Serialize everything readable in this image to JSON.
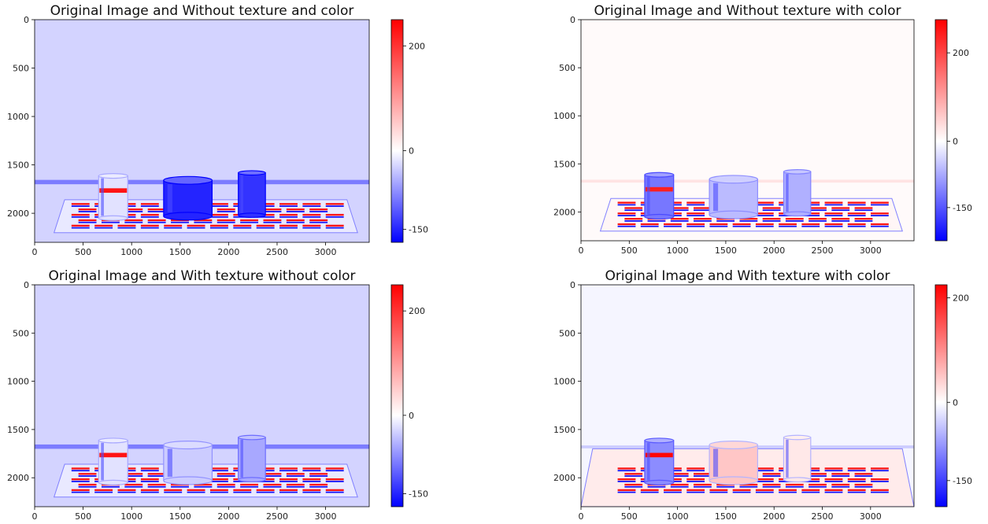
{
  "colors": {
    "cmap_low": "#0000ff",
    "cmap_mid": "#ffffff",
    "cmap_high": "#ff0000",
    "frame": "#000000"
  },
  "chart_data": [
    {
      "type": "heatmap",
      "title": "Original Image and Without texture and color",
      "xlim": [
        0,
        3450
      ],
      "ylim": [
        2300,
        0
      ],
      "xticks": [
        0,
        500,
        1000,
        1500,
        2000,
        2500,
        3000
      ],
      "yticks": [
        0,
        500,
        1000,
        1500,
        2000
      ],
      "colorbar": {
        "range": [
          -175,
          250
        ],
        "ticks": [
          200,
          0,
          -150
        ]
      },
      "background_value": -30,
      "scene": [
        {
          "kind": "horizon",
          "y": 1655,
          "h": 45,
          "value": -90
        },
        {
          "kind": "mat",
          "x0": 200,
          "x1": 3330,
          "y0": 1860,
          "y1": 2200,
          "value": -15
        },
        {
          "kind": "checker",
          "x0": 380,
          "x1": 3240,
          "y0": 1890,
          "y1": 2170,
          "cols": 12,
          "rows": 5
        },
        {
          "kind": "cylinder",
          "x0": 660,
          "x1": 960,
          "y0": 1590,
          "y1": 2050,
          "value": -20,
          "band": 230
        },
        {
          "kind": "cylinder",
          "x0": 1330,
          "x1": 1830,
          "y0": 1620,
          "y1": 2030,
          "value": -150
        },
        {
          "kind": "cylinder",
          "x0": 2100,
          "x1": 2380,
          "y0": 1560,
          "y1": 2020,
          "value": -140
        }
      ]
    },
    {
      "type": "heatmap",
      "title": "Original Image and Without texture with color",
      "xlim": [
        0,
        3450
      ],
      "ylim": [
        2300,
        0
      ],
      "xticks": [
        0,
        500,
        1000,
        1500,
        2000,
        2500,
        3000
      ],
      "yticks": [
        0,
        500,
        1000,
        1500,
        2000
      ],
      "colorbar": {
        "range": [
          -225,
          275
        ],
        "ticks": [
          200,
          0,
          -150
        ]
      },
      "background_value": 5,
      "scene": [
        {
          "kind": "horizon",
          "y": 1665,
          "h": 30,
          "value": 30
        },
        {
          "kind": "mat",
          "x0": 200,
          "x1": 3330,
          "y0": 1860,
          "y1": 2200,
          "value": 10
        },
        {
          "kind": "checker",
          "x0": 380,
          "x1": 3240,
          "y0": 1890,
          "y1": 2170,
          "cols": 12,
          "rows": 5
        },
        {
          "kind": "cylinder",
          "x0": 660,
          "x1": 960,
          "y0": 1590,
          "y1": 2050,
          "value": -120,
          "band": 240
        },
        {
          "kind": "cylinder",
          "x0": 1330,
          "x1": 1830,
          "y0": 1620,
          "y1": 2030,
          "value": -60
        },
        {
          "kind": "cylinder",
          "x0": 2100,
          "x1": 2380,
          "y0": 1560,
          "y1": 2020,
          "value": -70
        }
      ]
    },
    {
      "type": "heatmap",
      "title": "Original Image and With texture without color",
      "xlim": [
        0,
        3450
      ],
      "ylim": [
        2300,
        0
      ],
      "xticks": [
        0,
        500,
        1000,
        1500,
        2000,
        2500,
        3000
      ],
      "yticks": [
        0,
        500,
        1000,
        1500,
        2000
      ],
      "colorbar": {
        "range": [
          -175,
          250
        ],
        "ticks": [
          200,
          0,
          -150
        ]
      },
      "background_value": -30,
      "scene": [
        {
          "kind": "horizon",
          "y": 1655,
          "h": 45,
          "value": -90
        },
        {
          "kind": "mat",
          "x0": 200,
          "x1": 3330,
          "y0": 1860,
          "y1": 2200,
          "value": -15
        },
        {
          "kind": "checker",
          "x0": 380,
          "x1": 3240,
          "y0": 1890,
          "y1": 2170,
          "cols": 12,
          "rows": 5
        },
        {
          "kind": "cylinder",
          "x0": 660,
          "x1": 960,
          "y0": 1590,
          "y1": 2050,
          "value": -20,
          "band": 230
        },
        {
          "kind": "cylinder",
          "x0": 1330,
          "x1": 1830,
          "y0": 1620,
          "y1": 2030,
          "value": -35
        },
        {
          "kind": "cylinder",
          "x0": 2100,
          "x1": 2380,
          "y0": 1560,
          "y1": 2020,
          "value": -60
        }
      ]
    },
    {
      "type": "heatmap",
      "title": "Original Image and With texture with color",
      "xlim": [
        0,
        3450
      ],
      "ylim": [
        2300,
        0
      ],
      "xticks": [
        0,
        500,
        1000,
        1500,
        2000,
        2500,
        3000
      ],
      "yticks": [
        0,
        500,
        1000,
        1500,
        2000
      ],
      "colorbar": {
        "range": [
          -200,
          225
        ],
        "ticks": [
          200,
          0,
          -150
        ]
      },
      "background_value": -8,
      "scene": [
        {
          "kind": "horizon",
          "y": 1665,
          "h": 30,
          "value": -40
        },
        {
          "kind": "mat",
          "x0": 0,
          "x1": 3450,
          "y0": 1700,
          "y1": 2300,
          "value": 18
        },
        {
          "kind": "checker",
          "x0": 380,
          "x1": 3240,
          "y0": 1890,
          "y1": 2170,
          "cols": 12,
          "rows": 5
        },
        {
          "kind": "cylinder",
          "x0": 660,
          "x1": 960,
          "y0": 1590,
          "y1": 2050,
          "value": -90,
          "band": 220
        },
        {
          "kind": "cylinder",
          "x0": 1330,
          "x1": 1830,
          "y0": 1620,
          "y1": 2030,
          "value": 50
        },
        {
          "kind": "cylinder",
          "x0": 2100,
          "x1": 2380,
          "y0": 1560,
          "y1": 2020,
          "value": 20
        }
      ]
    }
  ]
}
